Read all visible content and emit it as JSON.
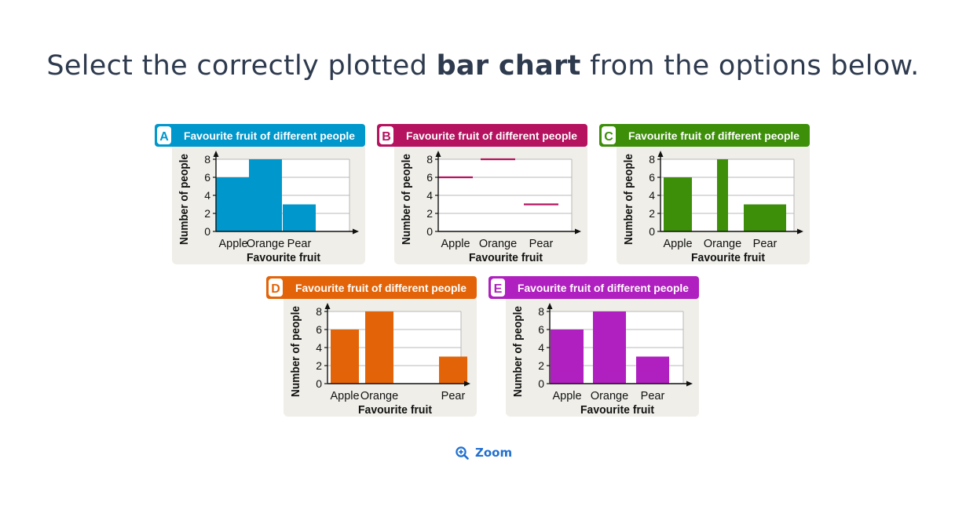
{
  "question": {
    "prefix": "Select the correctly plotted",
    "bold": "bar chart",
    "suffix": "from the options below."
  },
  "zoom": {
    "label": "Zoom",
    "icon": "zoom-in-icon"
  },
  "chart_data": [
    {
      "option": "A",
      "color": "#0097cc",
      "style": "histogram",
      "type": "bar",
      "title": "Favourite fruit of different people",
      "xlabel": "Favourite fruit",
      "ylabel": "Number of people",
      "categories": [
        "Apple",
        "Orange",
        "Pear"
      ],
      "values": [
        6,
        8,
        3
      ],
      "yticks": [
        0,
        2,
        4,
        6,
        8
      ],
      "ylim": [
        0,
        8
      ],
      "grid": true
    },
    {
      "option": "B",
      "color": "#b5125f",
      "style": "lines",
      "type": "bar",
      "title": "Favourite fruit of different people",
      "xlabel": "Favourite fruit",
      "ylabel": "Number of people",
      "categories": [
        "Apple",
        "Orange",
        "Pear"
      ],
      "values": [
        6,
        8,
        3
      ],
      "yticks": [
        0,
        2,
        4,
        6,
        8
      ],
      "ylim": [
        0,
        8
      ],
      "grid": true
    },
    {
      "option": "C",
      "color": "#3d8f0a",
      "style": "uneven-width",
      "type": "bar",
      "title": "Favourite fruit of different people",
      "xlabel": "Favourite fruit",
      "ylabel": "Number of people",
      "categories": [
        "Apple",
        "Orange",
        "Pear"
      ],
      "values": [
        6,
        8,
        3
      ],
      "yticks": [
        0,
        2,
        4,
        6,
        8
      ],
      "ylim": [
        0,
        8
      ],
      "grid": true
    },
    {
      "option": "D",
      "color": "#e36408",
      "style": "uneven-gaps",
      "type": "bar",
      "title": "Favourite fruit of different people",
      "xlabel": "Favourite fruit",
      "ylabel": "Number of people",
      "categories": [
        "Apple",
        "Orange",
        "Pear"
      ],
      "values": [
        6,
        8,
        3
      ],
      "yticks": [
        0,
        2,
        4,
        6,
        8
      ],
      "ylim": [
        0,
        8
      ],
      "grid": true
    },
    {
      "option": "E",
      "color": "#b01fbf",
      "style": "bars",
      "type": "bar",
      "title": "Favourite fruit of different people",
      "xlabel": "Favourite fruit",
      "ylabel": "Number of people",
      "categories": [
        "Apple",
        "Orange",
        "Pear"
      ],
      "values": [
        6,
        8,
        3
      ],
      "yticks": [
        0,
        2,
        4,
        6,
        8
      ],
      "ylim": [
        0,
        8
      ],
      "grid": true
    }
  ]
}
